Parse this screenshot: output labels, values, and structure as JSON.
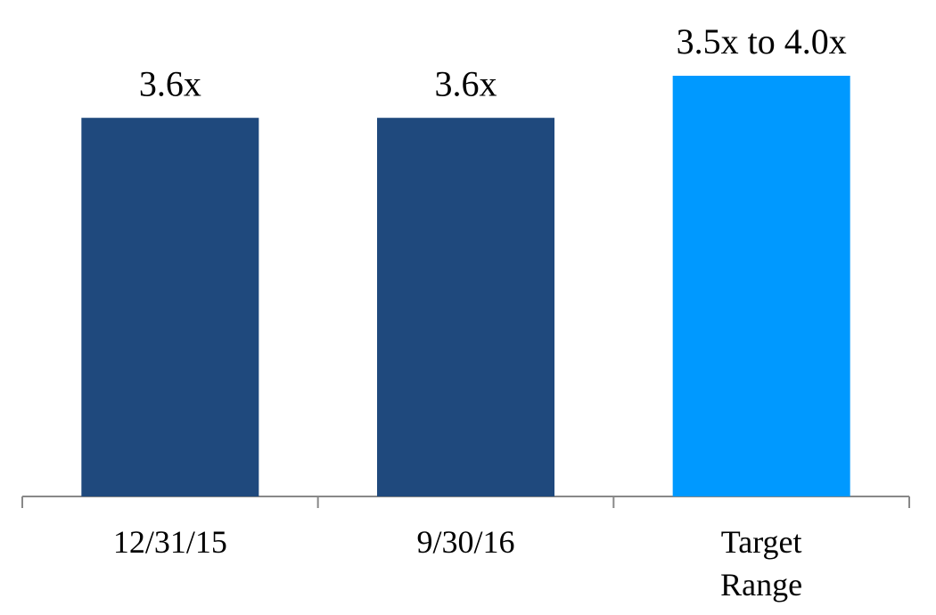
{
  "chart_data": {
    "type": "bar",
    "categories": [
      "12/31/15",
      "9/30/16",
      "Target Range"
    ],
    "values": [
      3.6,
      3.6,
      4.0
    ],
    "value_labels": [
      "3.6x",
      "3.6x",
      "3.5x to 4.0x"
    ],
    "colors": [
      "#1f497d",
      "#1f497d",
      "#0099ff"
    ]
  }
}
